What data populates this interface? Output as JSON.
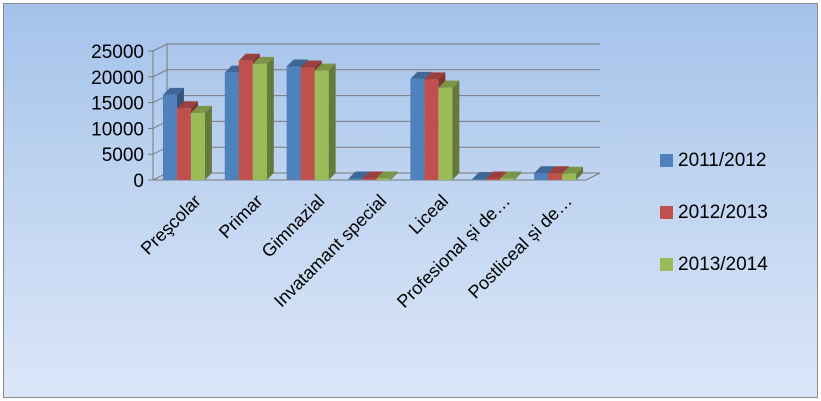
{
  "chart_data": {
    "type": "bar",
    "title": "",
    "xlabel": "",
    "ylabel": "",
    "ylim": [
      0,
      25000
    ],
    "yticks": [
      0,
      5000,
      10000,
      15000,
      20000,
      25000
    ],
    "categories": [
      "Preşcolar",
      "Primar",
      "Gimnazial",
      "Invatamant special",
      "Liceal",
      "Profesional și de…",
      "Postliceal și de…"
    ],
    "series": [
      {
        "name": "2011/2012",
        "color": "#4f81bd",
        "values": [
          16500,
          20800,
          22000,
          300,
          19600,
          200,
          1300
        ]
      },
      {
        "name": "2012/2013",
        "color": "#c0504d",
        "values": [
          13900,
          23100,
          21800,
          300,
          19500,
          300,
          1300
        ]
      },
      {
        "name": "2013/2014",
        "color": "#9bbb59",
        "values": [
          13000,
          22500,
          21200,
          300,
          17900,
          300,
          1200
        ]
      }
    ],
    "grid": true,
    "legend_position": "right",
    "style": "3d-clustered-column"
  }
}
